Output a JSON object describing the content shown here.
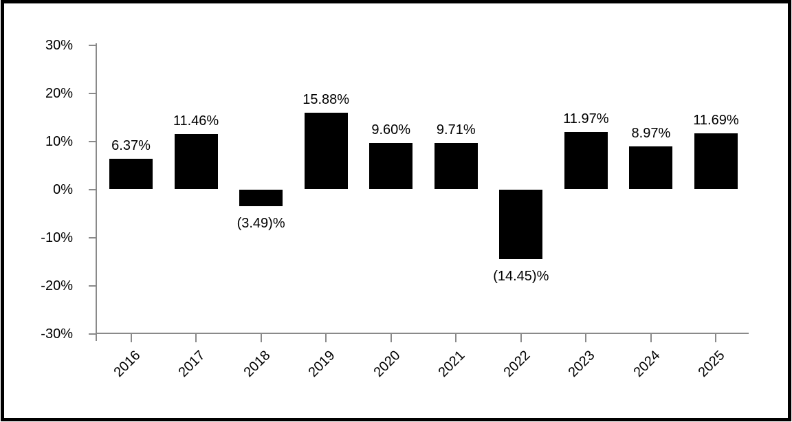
{
  "frame": {
    "background_color": "#ffffff",
    "border_color": "#000000"
  },
  "chart_data": {
    "type": "bar",
    "title": "",
    "xlabel": "",
    "ylabel": "",
    "categories": [
      "2016",
      "2017",
      "2018",
      "2019",
      "2020",
      "2021",
      "2022",
      "2023",
      "2024",
      "2025"
    ],
    "values": [
      6.37,
      11.46,
      -3.49,
      15.88,
      9.6,
      9.71,
      -14.45,
      11.97,
      8.97,
      11.69
    ],
    "bar_labels": [
      "6.37%",
      "11.46%",
      "(3.49)%",
      "15.88%",
      "9.60%",
      "9.71%",
      "(14.45)%",
      "11.97%",
      "8.97%",
      "11.69%"
    ],
    "y_ticks": [
      "30%",
      "20%",
      "10%",
      "0%",
      "-10%",
      "-20%",
      "-30%"
    ],
    "ylim": [
      -30,
      30
    ],
    "grid": false,
    "legend_position": "none",
    "bar_color": "#000000",
    "axis_color": "#8a8a8a",
    "label_color": "#000000"
  }
}
